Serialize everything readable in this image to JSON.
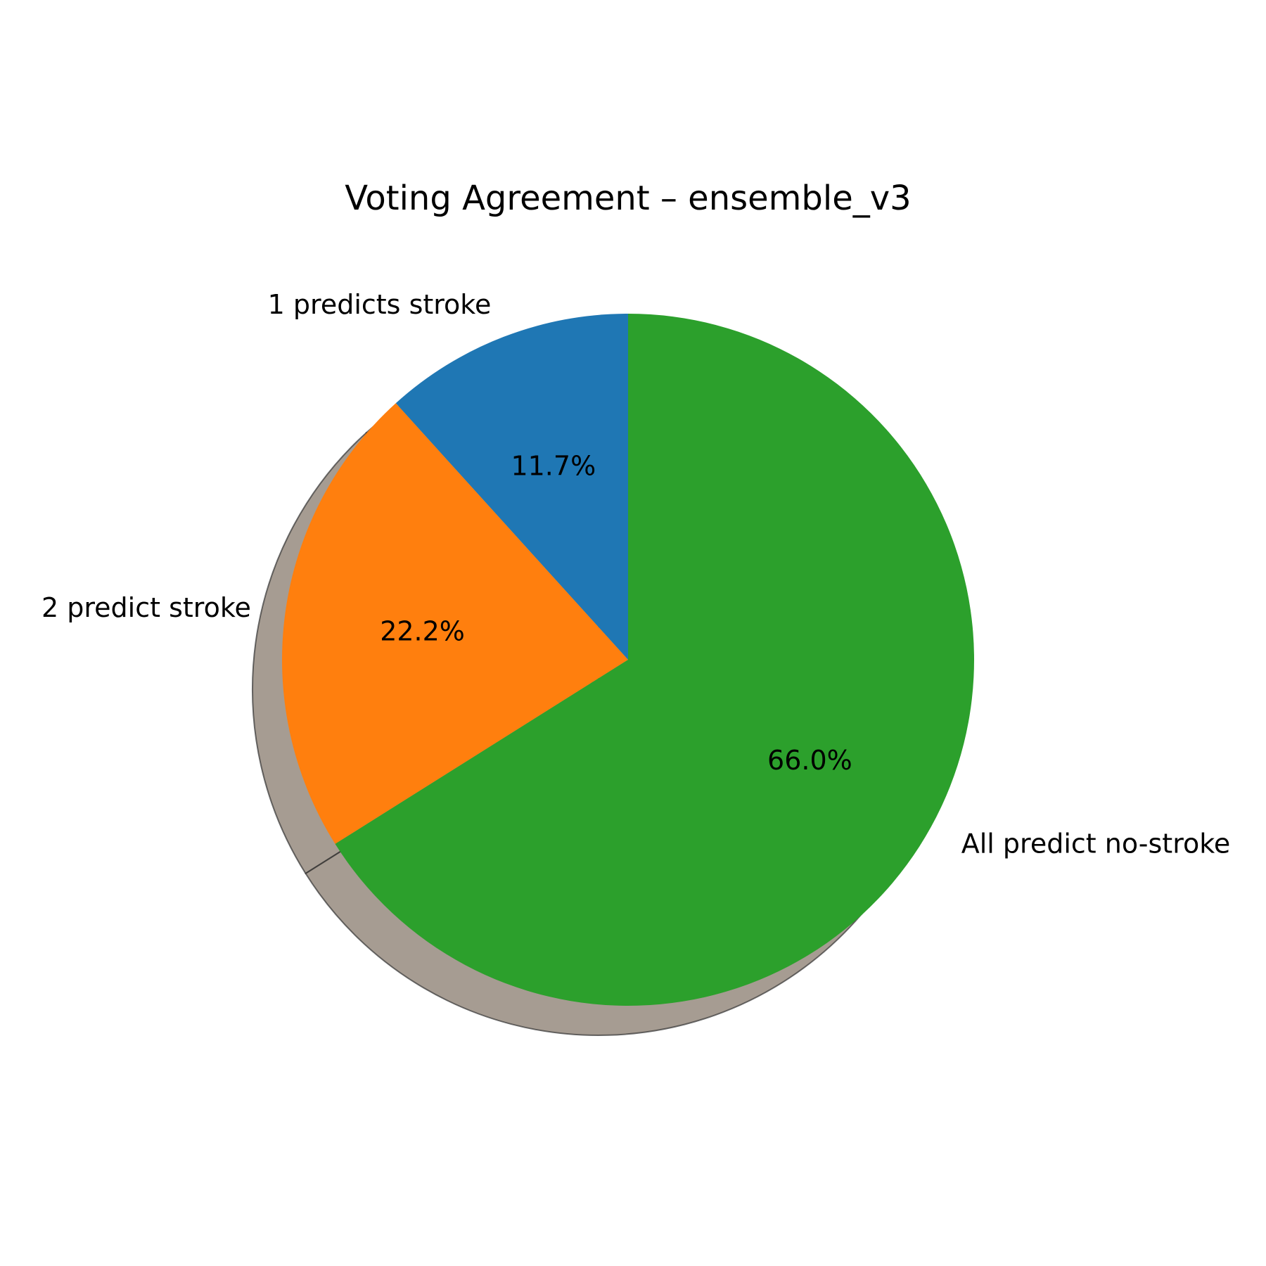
{
  "chart_data": {
    "type": "pie",
    "title": "Voting Agreement – ensemble_v3",
    "slices": [
      {
        "label": "1 predicts stroke",
        "value": 11.7,
        "pct_label": "11.7%",
        "color": "#1f77b4"
      },
      {
        "label": "2 predict stroke",
        "value": 22.2,
        "pct_label": "22.2%",
        "color": "#ff7f0e"
      },
      {
        "label": "All predict no-stroke",
        "value": 66.0,
        "pct_label": "66.0%",
        "color": "#2ca02c"
      }
    ],
    "start_angle_deg": 90,
    "direction": "counterclockwise",
    "shadow": true,
    "shadow_color": "#6b5a4a"
  }
}
